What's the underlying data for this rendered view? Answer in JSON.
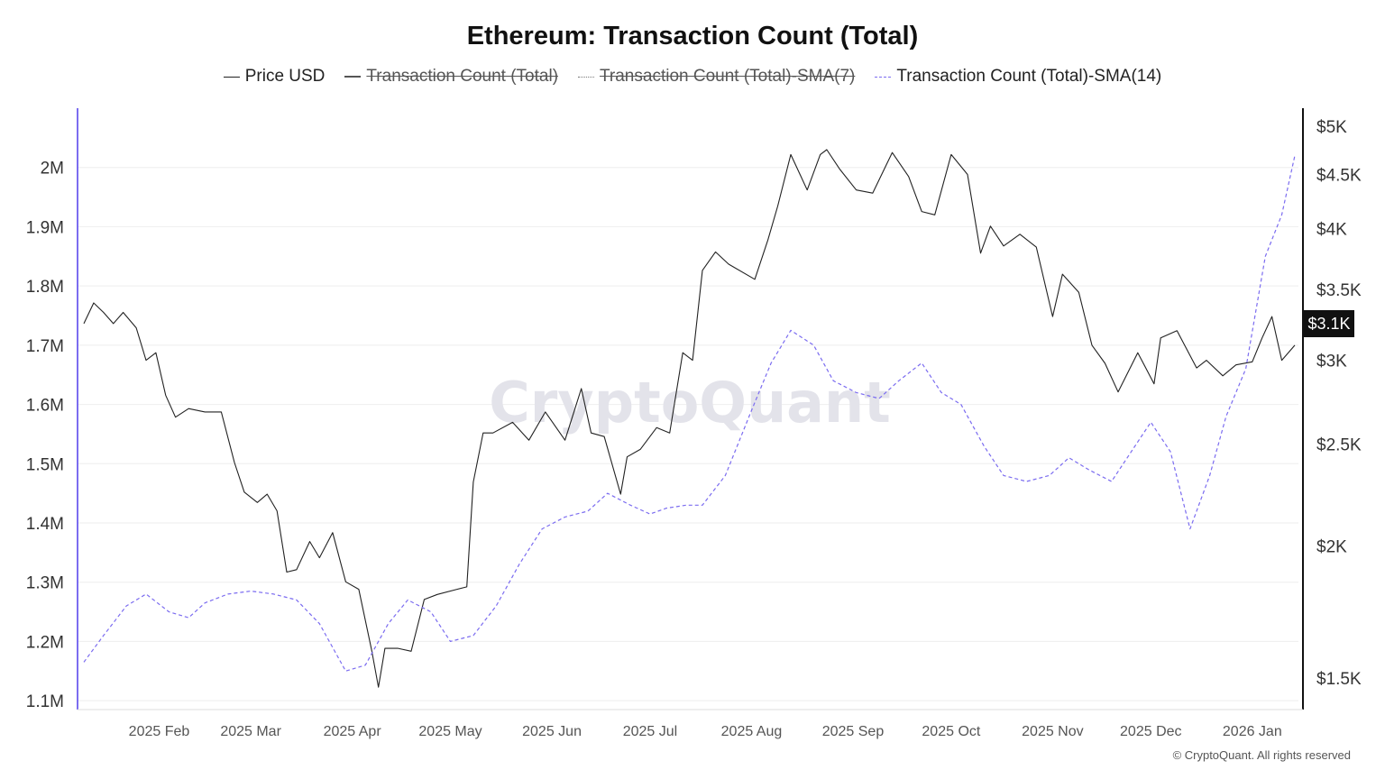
{
  "title": "Ethereum: Transaction Count (Total)",
  "credit": "© CryptoQuant. All rights reserved",
  "watermark": "CryptoQuant",
  "legend": [
    {
      "label": "Price USD",
      "color": "#222222",
      "style": "solid",
      "hidden": false
    },
    {
      "label": "Transaction Count (Total)",
      "color": "#555555",
      "style": "solid-thick",
      "hidden": true
    },
    {
      "label": "Transaction Count (Total)-SMA(7)",
      "color": "#777777",
      "style": "dotted",
      "hidden": true
    },
    {
      "label": "Transaction Count (Total)-SMA(14)",
      "color": "#7b6cf0",
      "style": "dashed",
      "hidden": false
    }
  ],
  "price_badge": "$3.1K",
  "colors": {
    "price": "#222222",
    "sma14": "#7b6cf0",
    "left_axis": "#7b6cf0",
    "grid": "#eeeeee"
  },
  "chart_data": {
    "type": "line",
    "title": "Ethereum: Transaction Count (Total)",
    "x_axis": {
      "type": "date",
      "range": [
        "2025-01-09",
        "2026-01-14"
      ],
      "ticks": [
        {
          "date": "2025-02-01",
          "label": "2025 Feb"
        },
        {
          "date": "2025-03-01",
          "label": "2025 Mar"
        },
        {
          "date": "2025-04-01",
          "label": "2025 Apr"
        },
        {
          "date": "2025-05-01",
          "label": "2025 May"
        },
        {
          "date": "2025-06-01",
          "label": "2025 Jun"
        },
        {
          "date": "2025-07-01",
          "label": "2025 Jul"
        },
        {
          "date": "2025-08-01",
          "label": "2025 Aug"
        },
        {
          "date": "2025-09-01",
          "label": "2025 Sep"
        },
        {
          "date": "2025-10-01",
          "label": "2025 Oct"
        },
        {
          "date": "2025-11-01",
          "label": "2025 Nov"
        },
        {
          "date": "2025-12-01",
          "label": "2025 Dec"
        },
        {
          "date": "2026-01-01",
          "label": "2026 Jan"
        }
      ]
    },
    "y_left": {
      "range": [
        1085000,
        2100000
      ],
      "ticks": [
        {
          "value": 1100000,
          "label": "1.1M"
        },
        {
          "value": 1200000,
          "label": "1.2M"
        },
        {
          "value": 1300000,
          "label": "1.3M"
        },
        {
          "value": 1400000,
          "label": "1.4M"
        },
        {
          "value": 1500000,
          "label": "1.5M"
        },
        {
          "value": 1600000,
          "label": "1.6M"
        },
        {
          "value": 1700000,
          "label": "1.7M"
        },
        {
          "value": 1800000,
          "label": "1.8M"
        },
        {
          "value": 1900000,
          "label": "1.9M"
        },
        {
          "value": 2000000,
          "label": "2M"
        }
      ]
    },
    "y_right": {
      "scale": "log",
      "range": [
        1400,
        5200
      ],
      "ticks": [
        {
          "value": 1500,
          "label": "$1.5K"
        },
        {
          "value": 2000,
          "label": "$2K"
        },
        {
          "value": 2500,
          "label": "$2.5K"
        },
        {
          "value": 3000,
          "label": "$3K"
        },
        {
          "value": 3500,
          "label": "$3.5K"
        },
        {
          "value": 4000,
          "label": "$4K"
        },
        {
          "value": 4500,
          "label": "$4.5K"
        },
        {
          "value": 5000,
          "label": "$5K"
        }
      ]
    },
    "grid": true,
    "legend_position": "top-center",
    "series": [
      {
        "name": "Price USD",
        "axis": "right",
        "x": [
          "2025-01-09",
          "2025-01-12",
          "2025-01-15",
          "2025-01-18",
          "2025-01-21",
          "2025-01-25",
          "2025-01-28",
          "2025-01-31",
          "2025-02-03",
          "2025-02-06",
          "2025-02-10",
          "2025-02-15",
          "2025-02-20",
          "2025-02-24",
          "2025-02-27",
          "2025-03-03",
          "2025-03-06",
          "2025-03-09",
          "2025-03-12",
          "2025-03-15",
          "2025-03-19",
          "2025-03-22",
          "2025-03-26",
          "2025-03-30",
          "2025-04-03",
          "2025-04-07",
          "2025-04-09",
          "2025-04-11",
          "2025-04-15",
          "2025-04-19",
          "2025-04-23",
          "2025-04-27",
          "2025-05-03",
          "2025-05-06",
          "2025-05-08",
          "2025-05-11",
          "2025-05-14",
          "2025-05-20",
          "2025-05-25",
          "2025-05-30",
          "2025-06-05",
          "2025-06-10",
          "2025-06-13",
          "2025-06-17",
          "2025-06-22",
          "2025-06-24",
          "2025-06-28",
          "2025-07-03",
          "2025-07-07",
          "2025-07-11",
          "2025-07-14",
          "2025-07-17",
          "2025-07-21",
          "2025-07-25",
          "2025-08-02",
          "2025-08-06",
          "2025-08-09",
          "2025-08-13",
          "2025-08-18",
          "2025-08-22",
          "2025-08-24",
          "2025-08-28",
          "2025-09-02",
          "2025-09-07",
          "2025-09-13",
          "2025-09-18",
          "2025-09-22",
          "2025-09-26",
          "2025-10-01",
          "2025-10-06",
          "2025-10-10",
          "2025-10-13",
          "2025-10-17",
          "2025-10-22",
          "2025-10-27",
          "2025-11-01",
          "2025-11-04",
          "2025-11-09",
          "2025-11-13",
          "2025-11-17",
          "2025-11-21",
          "2025-11-27",
          "2025-12-02",
          "2025-12-04",
          "2025-12-09",
          "2025-12-15",
          "2025-12-18",
          "2025-12-23",
          "2025-12-27",
          "2026-01-01",
          "2026-01-04",
          "2026-01-07",
          "2026-01-10",
          "2026-01-14"
        ],
        "values": [
          3250,
          3400,
          3330,
          3250,
          3330,
          3220,
          3000,
          3050,
          2780,
          2650,
          2700,
          2680,
          2680,
          2400,
          2250,
          2200,
          2240,
          2160,
          1890,
          1900,
          2020,
          1950,
          2060,
          1850,
          1820,
          1590,
          1470,
          1600,
          1600,
          1590,
          1780,
          1800,
          1820,
          1830,
          2300,
          2560,
          2560,
          2620,
          2520,
          2680,
          2520,
          2820,
          2560,
          2540,
          2240,
          2430,
          2470,
          2590,
          2560,
          3050,
          3000,
          3650,
          3800,
          3700,
          3580,
          3900,
          4200,
          4700,
          4350,
          4700,
          4750,
          4550,
          4350,
          4320,
          4720,
          4480,
          4150,
          4120,
          4700,
          4500,
          3790,
          4020,
          3850,
          3950,
          3840,
          3300,
          3620,
          3480,
          3100,
          2980,
          2800,
          3050,
          2850,
          3150,
          3200,
          2950,
          3000,
          2900,
          2970,
          2990,
          3150,
          3300,
          3000,
          3100
        ]
      },
      {
        "name": "Transaction Count (Total)-SMA(14)",
        "axis": "left",
        "x": [
          "2025-01-09",
          "2025-01-15",
          "2025-01-22",
          "2025-01-28",
          "2025-02-04",
          "2025-02-10",
          "2025-02-15",
          "2025-02-22",
          "2025-03-01",
          "2025-03-08",
          "2025-03-15",
          "2025-03-22",
          "2025-03-30",
          "2025-04-05",
          "2025-04-12",
          "2025-04-18",
          "2025-04-25",
          "2025-05-01",
          "2025-05-08",
          "2025-05-15",
          "2025-05-22",
          "2025-05-29",
          "2025-06-05",
          "2025-06-12",
          "2025-06-18",
          "2025-06-25",
          "2025-07-01",
          "2025-07-06",
          "2025-07-12",
          "2025-07-17",
          "2025-07-24",
          "2025-08-01",
          "2025-08-07",
          "2025-08-13",
          "2025-08-20",
          "2025-08-26",
          "2025-09-02",
          "2025-09-09",
          "2025-09-15",
          "2025-09-22",
          "2025-09-28",
          "2025-10-04",
          "2025-10-11",
          "2025-10-17",
          "2025-10-24",
          "2025-10-31",
          "2025-11-06",
          "2025-11-12",
          "2025-11-19",
          "2025-11-25",
          "2025-12-01",
          "2025-12-07",
          "2025-12-13",
          "2025-12-19",
          "2025-12-24",
          "2025-12-30",
          "2026-01-05",
          "2026-01-10",
          "2026-01-14"
        ],
        "values": [
          1165000,
          1210000,
          1260000,
          1280000,
          1250000,
          1240000,
          1265000,
          1280000,
          1285000,
          1280000,
          1270000,
          1230000,
          1150000,
          1160000,
          1230000,
          1270000,
          1250000,
          1200000,
          1210000,
          1260000,
          1330000,
          1390000,
          1410000,
          1420000,
          1450000,
          1430000,
          1415000,
          1425000,
          1430000,
          1430000,
          1480000,
          1590000,
          1670000,
          1725000,
          1700000,
          1640000,
          1620000,
          1610000,
          1640000,
          1670000,
          1620000,
          1600000,
          1530000,
          1480000,
          1470000,
          1480000,
          1510000,
          1490000,
          1470000,
          1520000,
          1570000,
          1520000,
          1390000,
          1480000,
          1580000,
          1660000,
          1850000,
          1920000,
          2020000
        ]
      }
    ]
  }
}
